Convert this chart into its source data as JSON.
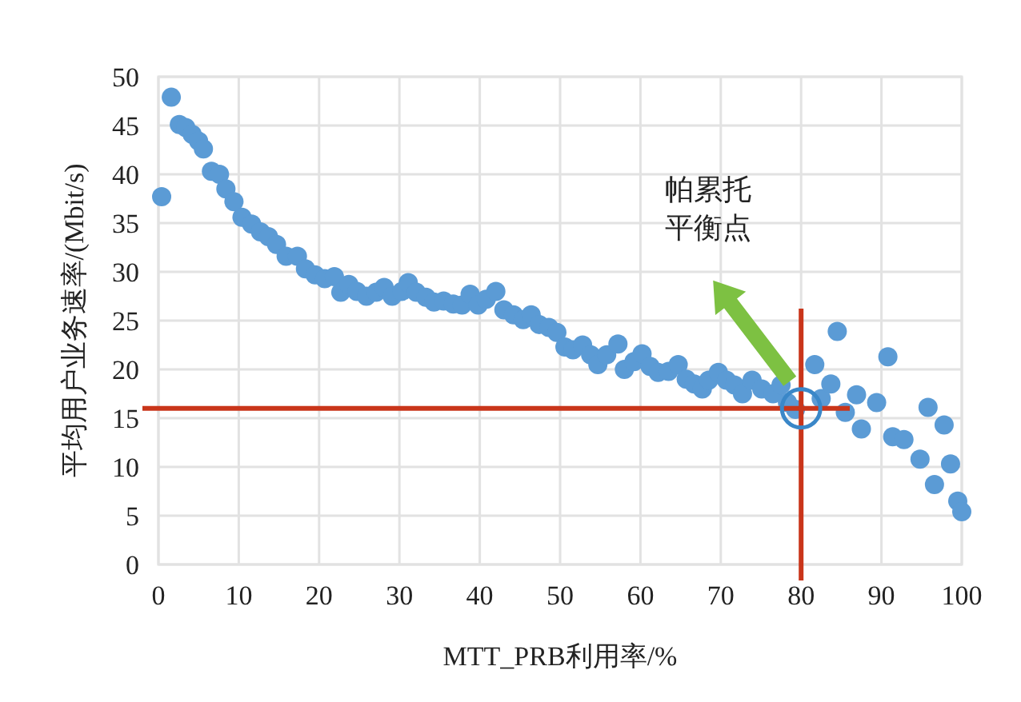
{
  "chart_data": {
    "type": "scatter",
    "xlabel": "MTT_PRB利用率/%",
    "ylabel": "平均用户业务速率/(Mbit/s)",
    "xlim": [
      0,
      100
    ],
    "ylim": [
      0,
      50
    ],
    "xticks": [
      0,
      10,
      20,
      30,
      40,
      50,
      60,
      70,
      80,
      90,
      100
    ],
    "yticks": [
      0,
      5,
      10,
      15,
      20,
      25,
      30,
      35,
      40,
      45,
      50
    ],
    "grid": true,
    "marker": "circle",
    "series": [
      {
        "color": "#5b9bd5",
        "x": [
          0.4,
          1.6,
          2.6,
          3.4,
          4.2,
          5,
          5.6,
          6.6,
          7.6,
          8.4,
          9.4,
          10.4,
          11.6,
          12.7,
          13.7,
          14.7,
          15.9,
          17.3,
          18.3,
          19.5,
          20.7,
          21.9,
          22.7,
          23.7,
          24.7,
          25.9,
          27.1,
          28.1,
          29.1,
          30.3,
          31.1,
          32.1,
          33.3,
          34.3,
          35.5,
          36.7,
          37.8,
          38.8,
          39.8,
          40.8,
          42,
          43,
          44.2,
          45.4,
          46.4,
          47.4,
          48.6,
          49.6,
          50.6,
          51.6,
          52.8,
          53.8,
          54.7,
          55.8,
          57.2,
          58,
          59.2,
          60.2,
          61.2,
          62.2,
          63.5,
          64.7,
          65.7,
          66.7,
          67.7,
          68.5,
          69.7,
          70.7,
          71.7,
          72.7,
          73.9,
          75.1,
          76.5,
          77.5,
          78.3,
          79.3,
          81.7,
          82.5,
          83.7,
          84.5,
          85.5,
          86.9,
          87.5,
          89.4,
          90.8,
          91.4,
          92.8,
          94.8,
          95.8,
          96.6,
          97.8,
          98.6,
          99.5,
          100
        ],
        "values": [
          37.7,
          47.9,
          45.1,
          44.8,
          44.1,
          43.4,
          42.6,
          40.3,
          40,
          38.5,
          37.2,
          35.6,
          34.9,
          34.1,
          33.6,
          32.8,
          31.6,
          31.6,
          30.3,
          29.7,
          29.3,
          29.5,
          27.9,
          28.7,
          28,
          27.5,
          27.9,
          28.4,
          27.5,
          28,
          28.9,
          27.9,
          27.4,
          26.9,
          27,
          26.7,
          26.6,
          27.7,
          26.6,
          27.2,
          28,
          26.1,
          25.6,
          25.1,
          25.6,
          24.6,
          24.3,
          23.8,
          22.3,
          22,
          22.5,
          21.5,
          20.5,
          21.5,
          22.6,
          20,
          20.8,
          21.6,
          20.3,
          19.7,
          19.8,
          20.5,
          19,
          18.5,
          18,
          18.9,
          19.7,
          18.9,
          18.4,
          17.5,
          18.9,
          18,
          17.5,
          18.4,
          16.6,
          15.9,
          20.5,
          17,
          18.5,
          23.9,
          15.6,
          17.4,
          13.9,
          16.6,
          21.3,
          13.1,
          12.8,
          10.8,
          16.1,
          8.2,
          14.3,
          10.3,
          6.5,
          5.4
        ]
      }
    ],
    "ref_lines": [
      {
        "axis": "y",
        "value": 16,
        "color": "#c9351a"
      },
      {
        "axis": "x",
        "value": 80,
        "color": "#c9351a"
      }
    ],
    "annotations": [
      "帕累托平衡点"
    ]
  }
}
